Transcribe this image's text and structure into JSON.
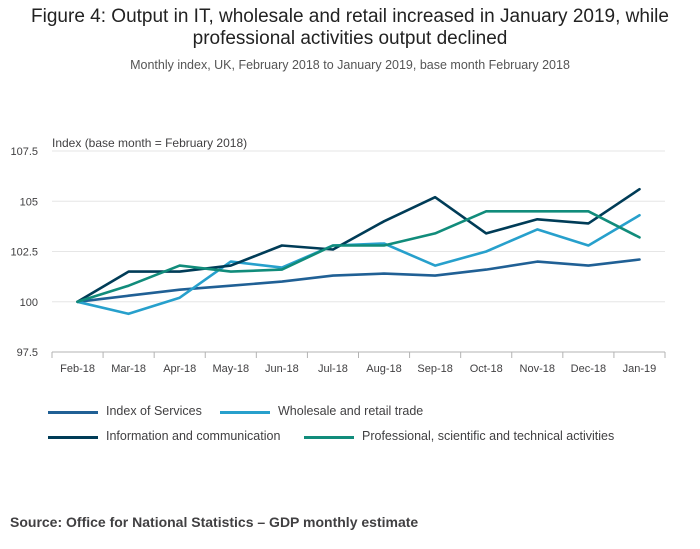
{
  "header": {
    "title_line1": "Figure 4: Output in IT, wholesale and retail increased in January 2019, while",
    "title_line2": "professional activities output declined",
    "subtitle": "Monthly index, UK, February 2018 to January 2019, base month February 2018"
  },
  "footer": {
    "source": "Source: Office for National Statistics – GDP monthly estimate"
  },
  "chart_data": {
    "type": "line",
    "title": "Figure 4: Output in IT, wholesale and retail increased in January 2019, while professional activities output declined",
    "subtitle": "Monthly index, UK, February 2018 to January 2019, base month February 2018",
    "ylabel": "Index (base month = February 2018)",
    "xlabel": "",
    "ylim": [
      97.5,
      107.5
    ],
    "yticks": [
      97.5,
      100,
      102.5,
      105,
      107.5
    ],
    "ytick_labels": [
      "97.5",
      "100",
      "102.5",
      "105",
      "107.5"
    ],
    "grid": true,
    "legend_position": "bottom",
    "categories": [
      "Feb-18",
      "Mar-18",
      "Apr-18",
      "May-18",
      "Jun-18",
      "Jul-18",
      "Aug-18",
      "Sep-18",
      "Oct-18",
      "Nov-18",
      "Dec-18",
      "Jan-19"
    ],
    "series": [
      {
        "name": "Index of Services",
        "color": "#206095",
        "values": [
          100.0,
          100.3,
          100.6,
          100.8,
          101.0,
          101.3,
          101.4,
          101.3,
          101.6,
          102.0,
          101.8,
          102.1
        ]
      },
      {
        "name": "Wholesale and retail trade",
        "color": "#27a0cc",
        "values": [
          100.0,
          99.4,
          100.2,
          102.0,
          101.7,
          102.8,
          102.9,
          101.8,
          102.5,
          103.6,
          102.8,
          104.3
        ]
      },
      {
        "name": "Information and communication",
        "color": "#003c57",
        "values": [
          100.0,
          101.5,
          101.5,
          101.8,
          102.8,
          102.6,
          104.0,
          105.2,
          103.4,
          104.1,
          103.9,
          105.6
        ]
      },
      {
        "name": "Professional, scientific and technical activities",
        "color": "#118c7b",
        "values": [
          100.0,
          100.8,
          101.8,
          101.5,
          101.6,
          102.8,
          102.8,
          103.4,
          104.5,
          104.5,
          104.5,
          103.2
        ]
      }
    ]
  }
}
